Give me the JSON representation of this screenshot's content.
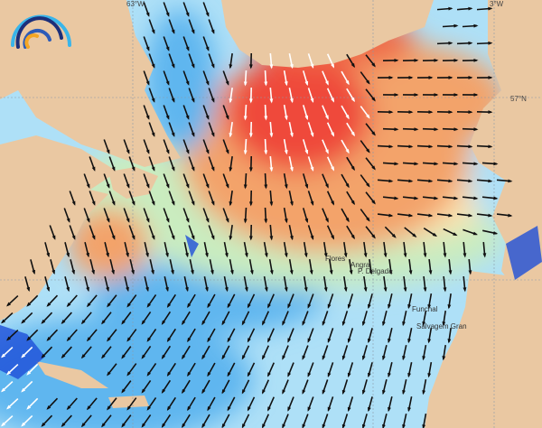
{
  "map": {
    "colors": {
      "land": "#eac8a2",
      "ocean_low": "#aee0f7",
      "ocean_mid": "#5fb6ef",
      "ocean_deep": "#1e4fd8",
      "green": "#c9ecc0",
      "yellow": "#fbe3b0",
      "orange": "#f3a36b",
      "red": "#ef4a3a",
      "arrow": "#111111",
      "arrow_high": "#ffffff"
    },
    "graticule_labels": [
      {
        "text": "63°W"
      },
      {
        "text": "3°W"
      },
      {
        "text": "57°N"
      }
    ],
    "places": [
      {
        "name": "Flores"
      },
      {
        "name": "Angra"
      },
      {
        "name": "P. Delgada"
      },
      {
        "name": "Funchal"
      },
      {
        "name": "Salvagem Gran"
      }
    ],
    "logo_icon": "wave-rainbow-logo"
  }
}
